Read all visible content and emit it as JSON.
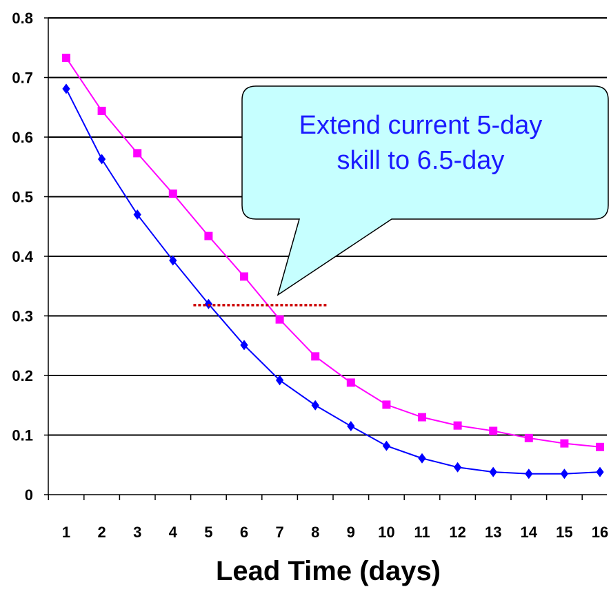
{
  "chart_data": {
    "type": "line",
    "xlabel": "Lead Time (days)",
    "ylabel": "",
    "x": [
      1,
      2,
      3,
      4,
      5,
      6,
      7,
      8,
      9,
      10,
      11,
      12,
      13,
      14,
      15,
      16
    ],
    "xticks": [
      "1",
      "2",
      "3",
      "4",
      "5",
      "6",
      "7",
      "8",
      "9",
      "10",
      "11",
      "12",
      "13",
      "14",
      "15",
      "16"
    ],
    "ylim": [
      0,
      0.8
    ],
    "yticks": [
      "0",
      "0.1",
      "0.2",
      "0.3",
      "0.4",
      "0.5",
      "0.6",
      "0.7",
      "0.8"
    ],
    "grid": true,
    "series": [
      {
        "color": "#ff00ff",
        "marker": "square",
        "values": [
          0.733,
          0.644,
          0.573,
          0.505,
          0.434,
          0.366,
          0.294,
          0.232,
          0.188,
          0.151,
          0.13,
          0.116,
          0.107,
          0.095,
          0.086,
          0.08
        ]
      },
      {
        "color": "#0000ff",
        "marker": "diamond",
        "values": [
          0.681,
          0.563,
          0.47,
          0.393,
          0.32,
          0.251,
          0.192,
          0.15,
          0.115,
          0.082,
          0.061,
          0.046,
          0.038,
          0.035,
          0.035,
          0.038
        ]
      }
    ],
    "reference_line": {
      "y": 0.318,
      "x_start": 5,
      "x_end": 8.6,
      "color": "#cc0000",
      "style": "dotted"
    },
    "annotation": {
      "lines": [
        "Extend current 5-day",
        "skill to 6.5-day"
      ],
      "text_color": "#1a1aff",
      "fill": "#c6ffff"
    }
  }
}
